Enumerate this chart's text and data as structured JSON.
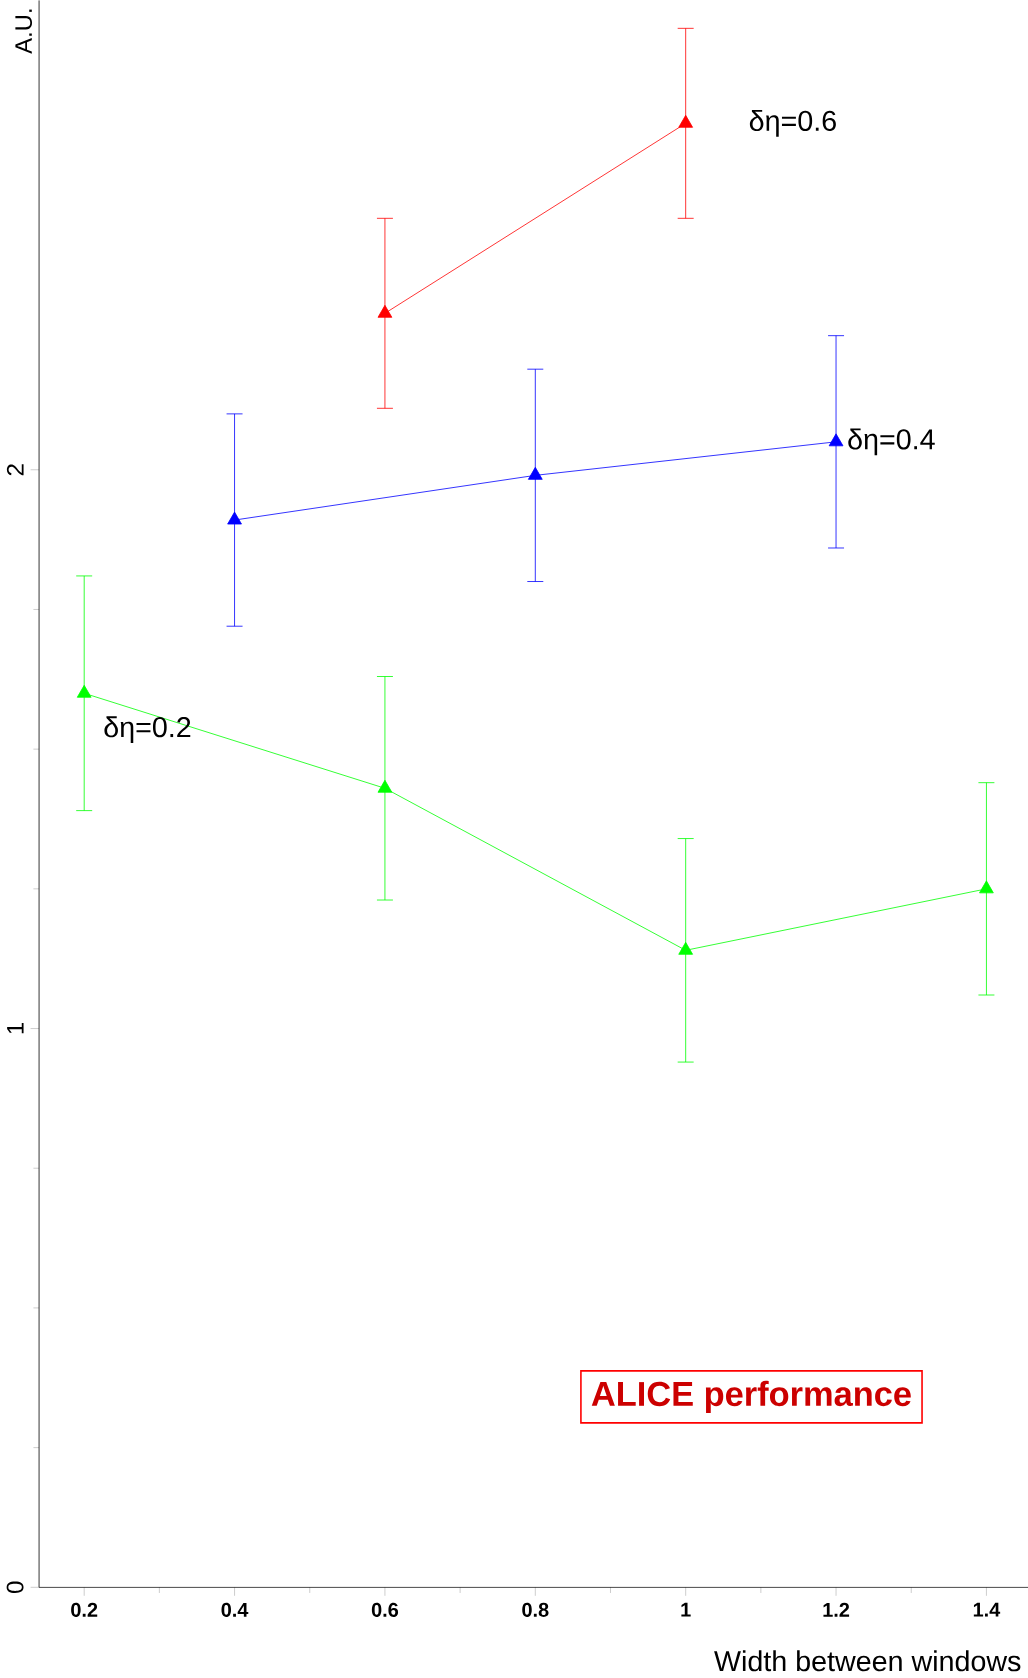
{
  "chart_data": {
    "type": "line",
    "xlabel": "Width between windows",
    "ylabel": "A.U.",
    "marker": "triangle",
    "line_style": "solid",
    "grid": false,
    "xlim": [
      0.14,
      1.456
    ],
    "ylim": [
      0,
      2.84
    ],
    "xticks": [
      0.2,
      0.4,
      0.6,
      0.8,
      1,
      1.2,
      1.4
    ],
    "yticks": [
      0,
      1,
      2
    ],
    "series": [
      {
        "name": "δη=0.2",
        "color": "#00ff00",
        "x": [
          0.2,
          0.6,
          1.0,
          1.4
        ],
        "values": [
          1.6,
          1.43,
          1.14,
          1.25
        ],
        "errors": [
          0.21,
          0.2,
          0.2,
          0.19
        ]
      },
      {
        "name": "δη=0.4",
        "color": "#0000ff",
        "x": [
          0.4,
          0.8,
          1.2
        ],
        "values": [
          1.91,
          1.99,
          2.05
        ],
        "errors": [
          0.19,
          0.19,
          0.19
        ]
      },
      {
        "name": "δη=0.6",
        "color": "#ff0000",
        "x": [
          0.6,
          1.0
        ],
        "values": [
          2.28,
          2.62
        ],
        "errors": [
          0.17,
          0.17
        ]
      }
    ],
    "annotations": [
      "ALICE performance"
    ]
  }
}
